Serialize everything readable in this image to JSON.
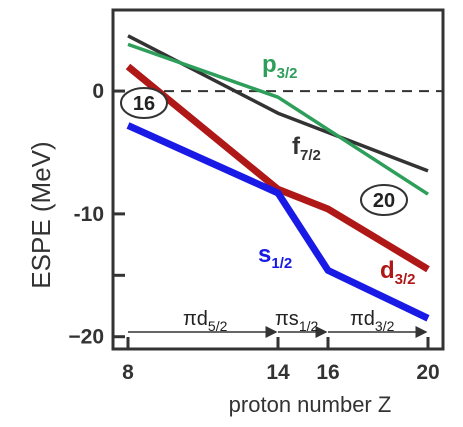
{
  "chart_data": {
    "type": "line",
    "xlabel": "proton number Z",
    "ylabel": "ESPE (MeV)",
    "xlim": [
      7.4,
      20.6
    ],
    "ylim": [
      -21,
      6.6
    ],
    "x_ticks": [
      8,
      14,
      16,
      20
    ],
    "y_ticks": [
      0,
      -10,
      -15,
      -20
    ],
    "y_tick_labels": [
      "0",
      "-10",
      "",
      "−20"
    ],
    "zero_line": "dashed",
    "series": [
      {
        "name": "f",
        "subscript": "7/2",
        "color": "#333333",
        "x": [
          8,
          14,
          20
        ],
        "y": [
          4.5,
          -1.8,
          -6.5
        ]
      },
      {
        "name": "p",
        "subscript": "3/2",
        "color": "#2e9e5b",
        "x": [
          8,
          14,
          20
        ],
        "y": [
          3.8,
          -0.5,
          -8.4
        ]
      },
      {
        "name": "d",
        "subscript": "3/2",
        "color": "#b01818",
        "x": [
          8,
          14,
          16,
          20
        ],
        "y": [
          2.0,
          -8.0,
          -9.6,
          -14.5
        ]
      },
      {
        "name": "s",
        "subscript": "1/2",
        "color": "#1a1ae6",
        "x": [
          8,
          14,
          16,
          20
        ],
        "y": [
          -2.8,
          -8.3,
          -14.6,
          -18.5
        ]
      }
    ],
    "magic_numbers": [
      "16",
      "20"
    ],
    "orbital_sequence": [
      {
        "name": "πd",
        "subscript": "5/2"
      },
      {
        "name": "πs",
        "subscript": "1/2"
      },
      {
        "name": "πd",
        "subscript": "3/2"
      }
    ]
  }
}
